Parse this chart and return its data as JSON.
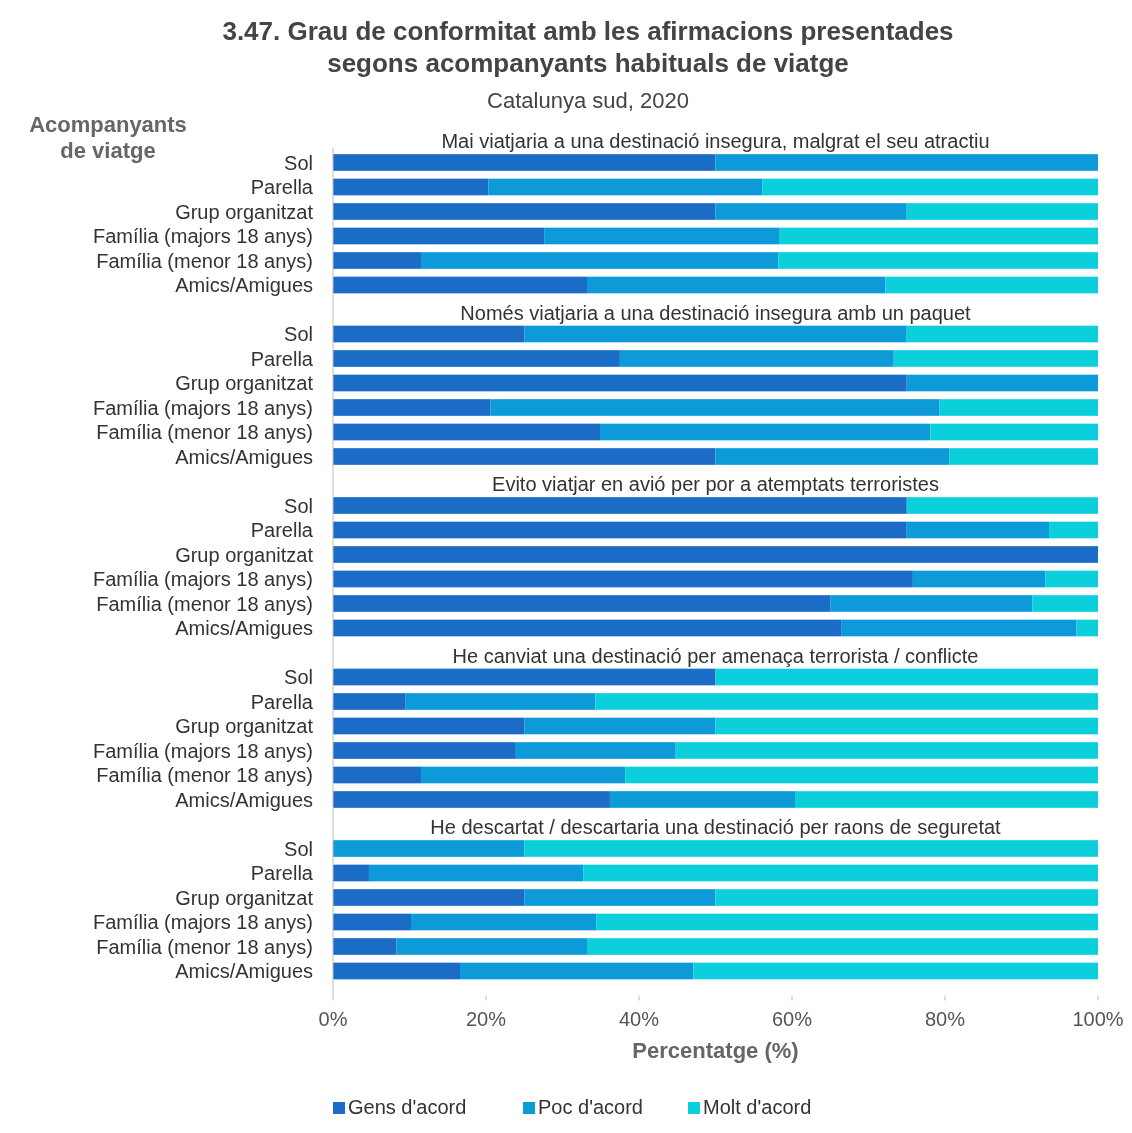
{
  "chart_data": {
    "type": "bar",
    "orientation": "horizontal",
    "stacked": true,
    "title": "3.47. Grau de conformitat amb les afirmacions presentades segons acompanyants habituals de viatge",
    "subtitle": "Catalunya sud, 2020",
    "ylabel": "Acompanyants de viatge",
    "xlabel": "Percentatge (%)",
    "categories": [
      "Sol",
      "Parella",
      "Grup organitzat",
      "Família (majors 18 anys)",
      "Família (menor 18 anys)",
      "Amics/Amigues",
      "Sol",
      "Parella",
      "Grup organitzat",
      "Família (majors 18 anys)",
      "Família (menor 18 anys)",
      "Amics/Amigues",
      "Sol",
      "Parella",
      "Grup organitzat",
      "Família (majors 18 anys)",
      "Família (menor 18 anys)",
      "Amics/Amigues",
      "Sol",
      "Parella",
      "Grup organitzat",
      "Família (majors 18 anys)",
      "Família (menor 18 anys)",
      "Amics/Amigues",
      "Sol",
      "Parella",
      "Grup organitzat",
      "Família (majors 18 anys)",
      "Família (menor 18 anys)",
      "Amics/Amigues"
    ],
    "annotations": [
      "Mai viatjaria a una destinació insegura, malgrat el seu atractiu",
      "Només viatjaria a una destinació insegura amb un paquet",
      "Evito viatjar en avió per por a atemptats terroristes",
      "He canviat una destinació per amenaça terrorista / conflicte",
      "He descartat / descartaria una destinació per raons de seguretat"
    ],
    "series": [
      {
        "name": "Gens d'acord",
        "color": "#1a6cc6",
        "values": [
          50,
          20.3,
          50,
          27.6,
          11.5,
          33.2,
          25,
          37.5,
          75,
          20.6,
          34.9,
          50,
          75,
          75,
          100,
          75.8,
          65,
          66.5,
          50,
          9.5,
          25,
          23.9,
          11.5,
          36.2,
          0,
          4.7,
          25,
          10.2,
          8.3,
          16.6
        ]
      },
      {
        "name": "Poc d'acord",
        "color": "#0d9ad8",
        "values": [
          50,
          35.8,
          25,
          30.8,
          46.7,
          39,
          50,
          35.8,
          25,
          58.7,
          43.2,
          30.6,
          0,
          18.6,
          0,
          17.3,
          26.4,
          30.7,
          0,
          24.8,
          25,
          20.9,
          26.7,
          24.2,
          25,
          28,
          25,
          24.2,
          24.9,
          30.5
        ]
      },
      {
        "name": "Molt d'acord",
        "color": "#0ccfdc",
        "values": [
          0,
          43.9,
          25,
          41.6,
          41.8,
          27.8,
          25,
          26.7,
          0,
          20.7,
          21.9,
          19.4,
          25,
          6.4,
          0,
          6.9,
          8.6,
          2.8,
          50,
          65.7,
          50,
          55.2,
          61.8,
          39.6,
          75,
          67.3,
          50,
          65.6,
          66.8,
          52.9
        ]
      }
    ],
    "xlim": [
      0,
      100
    ],
    "xticks": [
      {
        "value": 0,
        "label": "0%"
      },
      {
        "value": 20,
        "label": "20%"
      },
      {
        "value": 40,
        "label": "40%"
      },
      {
        "value": 60,
        "label": "60%"
      },
      {
        "value": 80,
        "label": "80%"
      },
      {
        "value": 100,
        "label": "100%"
      }
    ],
    "legend": "bottom"
  }
}
